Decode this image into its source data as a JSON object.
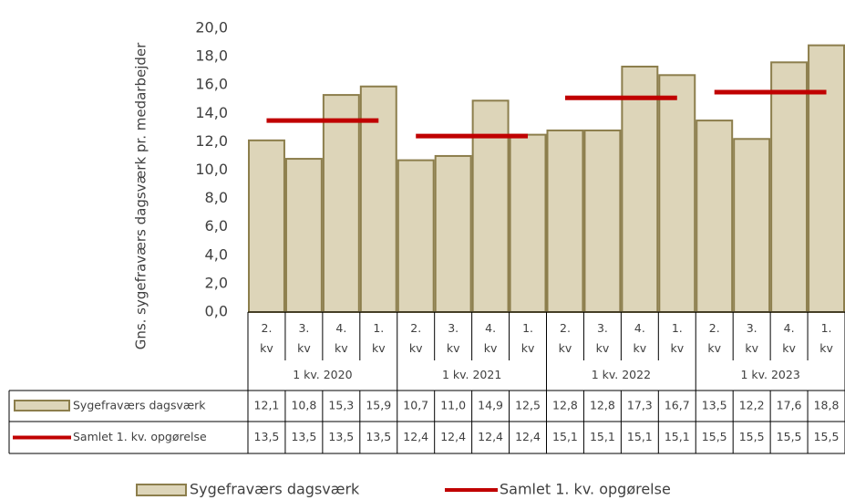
{
  "chart_data": {
    "type": "bar",
    "y_label": "Gns. sygefraværs dagsværk pr. medarbejder",
    "categories": [
      "2. kv",
      "3. kv",
      "4. kv",
      "1. kv",
      "2. kv",
      "3. kv",
      "4. kv",
      "1. kv",
      "2. kv",
      "3. kv",
      "4. kv",
      "1. kv",
      "2. kv",
      "3. kv",
      "4. kv",
      "1. kv"
    ],
    "groups": [
      "1 kv. 2020",
      "1 kv. 2021",
      "1 kv. 2022",
      "1 kv. 2023"
    ],
    "series": [
      {
        "name": "Sygefraværs dagsværk",
        "type": "bar",
        "color": "#ddd5b9",
        "edge_color": "#8c7e4c",
        "values": [
          12.1,
          10.8,
          15.3,
          15.9,
          10.7,
          11.0,
          14.9,
          12.5,
          12.8,
          12.8,
          17.3,
          16.7,
          13.5,
          12.2,
          17.6,
          18.8
        ],
        "value_labels": [
          "12,1",
          "10,8",
          "15,3",
          "15,9",
          "10,7",
          "11,0",
          "14,9",
          "12,5",
          "12,8",
          "12,8",
          "17,3",
          "16,7",
          "13,5",
          "12,2",
          "17,6",
          "18,8"
        ]
      },
      {
        "name": "Samlet 1. kv. opgørelse",
        "type": "line",
        "color": "#c00000",
        "values": [
          13.5,
          13.5,
          13.5,
          13.5,
          12.4,
          12.4,
          12.4,
          12.4,
          15.1,
          15.1,
          15.1,
          15.1,
          15.5,
          15.5,
          15.5,
          15.5
        ],
        "value_labels": [
          "13,5",
          "13,5",
          "13,5",
          "13,5",
          "12,4",
          "12,4",
          "12,4",
          "12,4",
          "15,1",
          "15,1",
          "15,1",
          "15,1",
          "15,5",
          "15,5",
          "15,5",
          "15,5"
        ]
      }
    ],
    "ylim": [
      0,
      20
    ],
    "yticks": [
      {
        "value": 0,
        "label": "0,0"
      },
      {
        "value": 2,
        "label": "2,0"
      },
      {
        "value": 4,
        "label": "4,0"
      },
      {
        "value": 6,
        "label": "6,0"
      },
      {
        "value": 8,
        "label": "8,0"
      },
      {
        "value": 10,
        "label": "10,0"
      },
      {
        "value": 12,
        "label": "12,0"
      },
      {
        "value": 14,
        "label": "14,0"
      },
      {
        "value": 16,
        "label": "16,0"
      },
      {
        "value": 18,
        "label": "18,0"
      },
      {
        "value": 20,
        "label": "20,0"
      }
    ],
    "grid": false,
    "legend": "bottom"
  }
}
